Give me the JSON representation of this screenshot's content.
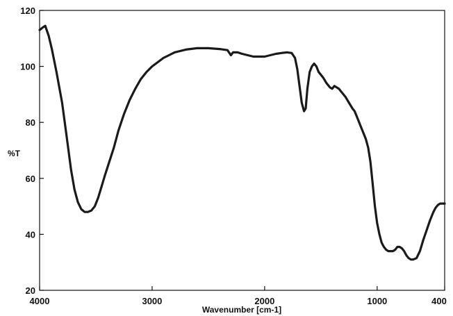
{
  "chart_data": {
    "type": "line",
    "title": "",
    "xlabel": "Wavenumber [cm-1]",
    "ylabel": "%T",
    "xlim": [
      4000,
      400
    ],
    "ylim": [
      20,
      120
    ],
    "x_reversed": true,
    "grid": false,
    "line_color": "#1a1a1a",
    "xticks": [
      4000,
      3000,
      2000,
      1000,
      400
    ],
    "xtick_labels": [
      "4000",
      "3000",
      "2000",
      "1000",
      "400"
    ],
    "yticks": [
      20,
      40,
      60,
      80,
      100,
      120
    ],
    "ytick_labels": [
      "20",
      "40",
      "60",
      "80",
      "100",
      "120"
    ],
    "series": [
      {
        "x": [
          4000,
          3970,
          3950,
          3920,
          3890,
          3850,
          3800,
          3760,
          3720,
          3690,
          3660,
          3630,
          3600,
          3570,
          3540,
          3510,
          3480,
          3450,
          3420,
          3380,
          3340,
          3300,
          3250,
          3200,
          3150,
          3100,
          3050,
          3000,
          2950,
          2900,
          2850,
          2800,
          2700,
          2600,
          2500,
          2400,
          2330,
          2300,
          2280,
          2240,
          2200,
          2150,
          2100,
          2050,
          2000,
          1950,
          1900,
          1850,
          1800,
          1760,
          1730,
          1710,
          1690,
          1670,
          1650,
          1635,
          1620,
          1600,
          1580,
          1560,
          1540,
          1520,
          1500,
          1480,
          1450,
          1420,
          1400,
          1380,
          1360,
          1340,
          1320,
          1300,
          1280,
          1250,
          1220,
          1200,
          1180,
          1150,
          1120,
          1100,
          1080,
          1060,
          1040,
          1020,
          1000,
          980,
          960,
          940,
          920,
          900,
          880,
          860,
          840,
          820,
          800,
          780,
          760,
          740,
          720,
          700,
          680,
          650,
          620,
          590,
          560,
          530,
          500,
          480,
          460,
          440,
          420,
          410,
          400
        ],
        "y": [
          113,
          114,
          114.5,
          111,
          106,
          98,
          87,
          75,
          63,
          56,
          51.5,
          49,
          48,
          48,
          48.5,
          50,
          53,
          57,
          61,
          66,
          71,
          77,
          83,
          88,
          92,
          95.5,
          98,
          100,
          101.5,
          103,
          104,
          105,
          106,
          106.5,
          106.5,
          106.2,
          105.8,
          104,
          105,
          105,
          104.5,
          104,
          103.5,
          103.5,
          103.5,
          104,
          104.5,
          104.8,
          105,
          104.8,
          103,
          99,
          93,
          87,
          84,
          85,
          92,
          98,
          100,
          101,
          100,
          98,
          97,
          96,
          94,
          92.5,
          92,
          93,
          92.5,
          92,
          91,
          90,
          89,
          87,
          85,
          84,
          82,
          79,
          76,
          74,
          71,
          66,
          58,
          50,
          44,
          40,
          37,
          35.5,
          34.5,
          34,
          34,
          34,
          34.5,
          35.5,
          35.5,
          35,
          34,
          32.5,
          31.5,
          31,
          31,
          31.5,
          34,
          38,
          41.5,
          45,
          48,
          49.5,
          50.5,
          51,
          51,
          51,
          51
        ]
      }
    ]
  }
}
